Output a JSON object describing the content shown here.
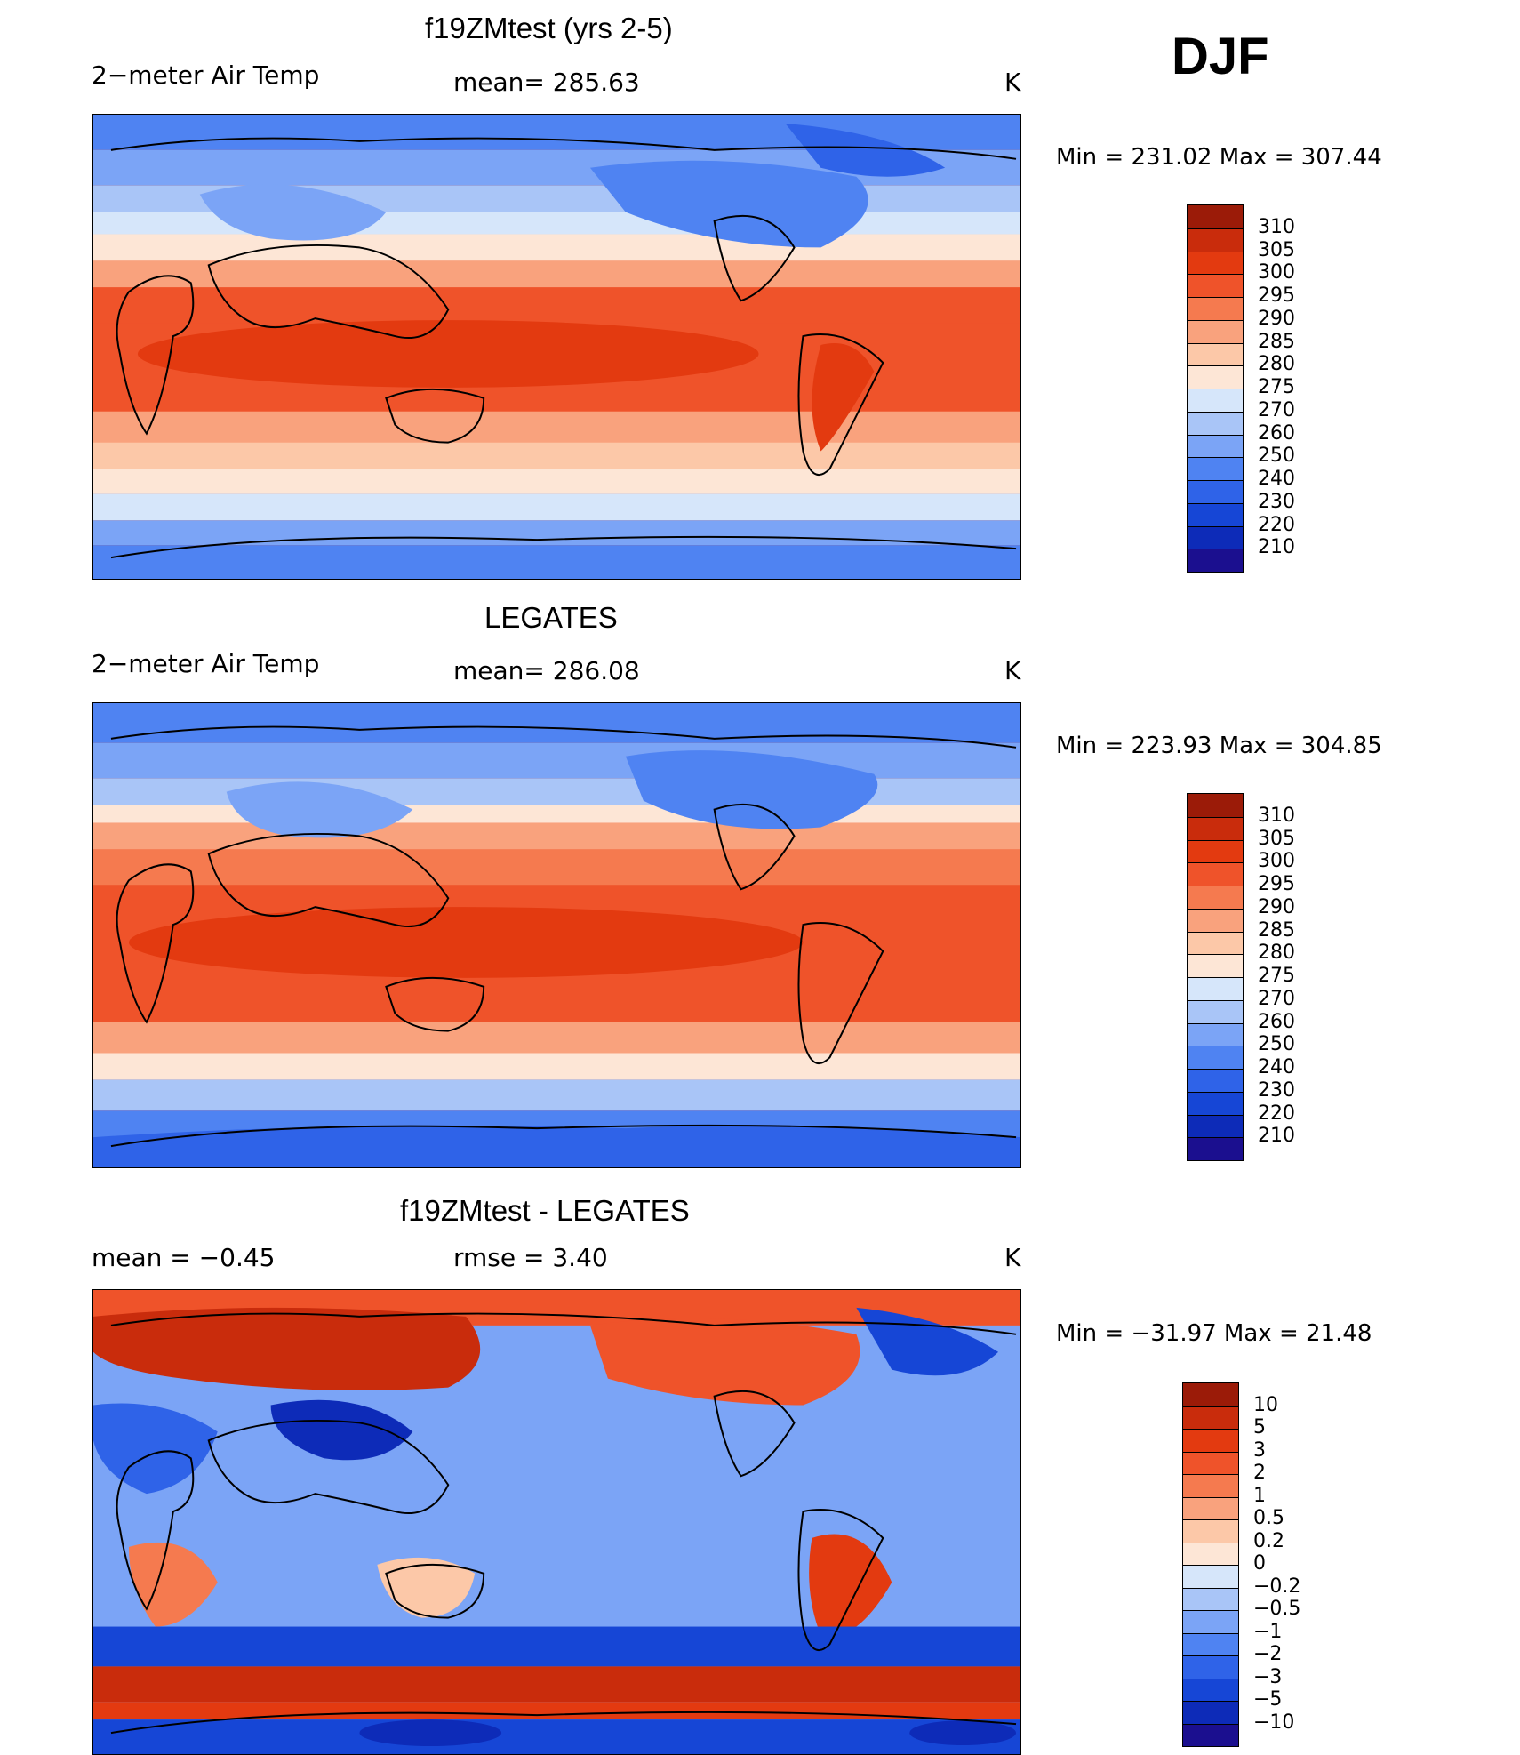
{
  "season": "DJF",
  "palette_temp": [
    "#1b0f8f",
    "#0d2bb8",
    "#1646d6",
    "#2f63e8",
    "#4f83f2",
    "#7ba4f6",
    "#a9c5f7",
    "#d6e6fa",
    "#fde6d6",
    "#fcc8a8",
    "#f9a27d",
    "#f57a4f",
    "#ef532a",
    "#e33a10",
    "#c92c0c",
    "#9b1b08"
  ],
  "palette_diff": [
    "#1b0f8f",
    "#0d2bb8",
    "#1646d6",
    "#2f63e8",
    "#4f83f2",
    "#7ba4f6",
    "#a9c5f7",
    "#d6e6fa",
    "#fde6d6",
    "#fcc8a8",
    "#f9a27d",
    "#f57a4f",
    "#ef532a",
    "#e33a10",
    "#c92c0c",
    "#9b1b08"
  ],
  "panels": [
    {
      "id": "model",
      "title": "f19ZMtest (yrs 2-5)",
      "left_label": "2−meter Air Temp",
      "center_label": "mean=  285.63",
      "units": "K",
      "minmax": "Min  =  231.02  Max  =  307.44",
      "colorbar_levels": [
        "310",
        "305",
        "300",
        "295",
        "290",
        "285",
        "280",
        "275",
        "270",
        "260",
        "250",
        "240",
        "230",
        "220",
        "210"
      ]
    },
    {
      "id": "obs",
      "title": "LEGATES",
      "left_label": "2−meter Air Temp",
      "center_label": "mean=  286.08",
      "units": "K",
      "minmax": "Min  =  223.93  Max  =  304.85",
      "colorbar_levels": [
        "310",
        "305",
        "300",
        "295",
        "290",
        "285",
        "280",
        "275",
        "270",
        "260",
        "250",
        "240",
        "230",
        "220",
        "210"
      ]
    },
    {
      "id": "diff",
      "title": "f19ZMtest - LEGATES",
      "left_label": "mean  =    −0.45",
      "center_label": "rmse  =     3.40",
      "units": "K",
      "minmax": "Min  =  −31.97  Max  =    21.48",
      "colorbar_levels": [
        "10",
        "5",
        "3",
        "2",
        "1",
        "0.5",
        "0.2",
        "0",
        "−0.2",
        "−0.5",
        "−1",
        "−2",
        "−3",
        "−5",
        "−10"
      ]
    }
  ]
}
